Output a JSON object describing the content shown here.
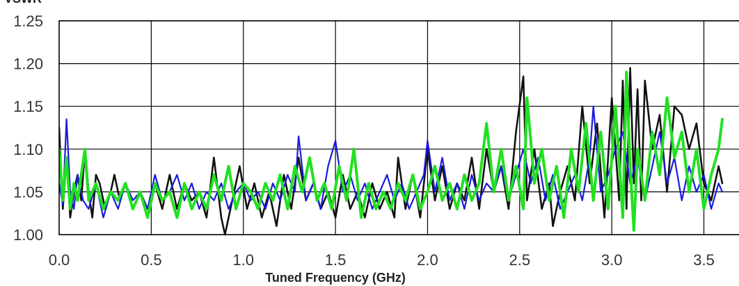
{
  "chart_data": {
    "type": "line",
    "title": "",
    "ylabel": "VSWR",
    "xlabel": "Tuned Frequency (GHz)",
    "xlim": [
      0.0,
      3.6
    ],
    "ylim": [
      1.0,
      1.25
    ],
    "x_ticks": [
      0.0,
      0.5,
      1.0,
      1.5,
      2.0,
      2.5,
      3.0,
      3.5
    ],
    "x_tick_labels": [
      "0.0",
      "0.5",
      "1.0",
      "1.5",
      "2.0",
      "2.5",
      "3.0",
      "3.5"
    ],
    "y_ticks": [
      1.0,
      1.05,
      1.1,
      1.15,
      1.2,
      1.25
    ],
    "y_tick_labels": [
      "1.00",
      "1.05",
      "1.10",
      "1.15",
      "1.20",
      "1.25"
    ],
    "grid": true,
    "legend": "none",
    "colors": {
      "black": "#111111",
      "blue": "#1a1adc",
      "green": "#22e022"
    },
    "series": [
      {
        "color": "#111111",
        "x": [
          0.0,
          0.02,
          0.04,
          0.06,
          0.08,
          0.1,
          0.12,
          0.14,
          0.16,
          0.18,
          0.2,
          0.22,
          0.25,
          0.28,
          0.3,
          0.33,
          0.36,
          0.4,
          0.44,
          0.48,
          0.52,
          0.56,
          0.6,
          0.64,
          0.68,
          0.72,
          0.76,
          0.8,
          0.84,
          0.88,
          0.9,
          0.94,
          0.98,
          1.02,
          1.06,
          1.1,
          1.14,
          1.18,
          1.22,
          1.26,
          1.3,
          1.34,
          1.38,
          1.42,
          1.46,
          1.5,
          1.54,
          1.58,
          1.62,
          1.66,
          1.7,
          1.74,
          1.78,
          1.82,
          1.84,
          1.88,
          1.92,
          1.96,
          2.0,
          2.04,
          2.08,
          2.12,
          2.16,
          2.2,
          2.24,
          2.28,
          2.32,
          2.36,
          2.4,
          2.44,
          2.48,
          2.52,
          2.54,
          2.58,
          2.62,
          2.66,
          2.68,
          2.72,
          2.76,
          2.8,
          2.84,
          2.88,
          2.92,
          2.96,
          3.0,
          3.04,
          3.06,
          3.08,
          3.1,
          3.12,
          3.14,
          3.16,
          3.18,
          3.22,
          3.26,
          3.3,
          3.34,
          3.38,
          3.42,
          3.46,
          3.5,
          3.54,
          3.58,
          3.6
        ],
        "y": [
          1.125,
          1.03,
          1.09,
          1.02,
          1.05,
          1.07,
          1.04,
          1.1,
          1.05,
          1.02,
          1.07,
          1.06,
          1.03,
          1.05,
          1.07,
          1.04,
          1.06,
          1.03,
          1.05,
          1.03,
          1.06,
          1.03,
          1.07,
          1.03,
          1.06,
          1.04,
          1.05,
          1.02,
          1.09,
          1.02,
          1.0,
          1.04,
          1.08,
          1.03,
          1.06,
          1.02,
          1.05,
          1.01,
          1.07,
          1.03,
          1.09,
          1.04,
          1.06,
          1.03,
          1.05,
          1.02,
          1.07,
          1.03,
          1.05,
          1.02,
          1.06,
          1.03,
          1.05,
          1.02,
          1.09,
          1.03,
          1.07,
          1.02,
          1.1,
          1.04,
          1.08,
          1.03,
          1.06,
          1.04,
          1.09,
          1.03,
          1.1,
          1.05,
          1.08,
          1.03,
          1.12,
          1.185,
          1.04,
          1.1,
          1.03,
          1.06,
          1.01,
          1.05,
          1.08,
          1.04,
          1.15,
          1.06,
          1.13,
          1.02,
          1.16,
          1.04,
          1.18,
          1.03,
          1.195,
          1.06,
          1.17,
          1.04,
          1.18,
          1.1,
          1.14,
          1.05,
          1.15,
          1.14,
          1.1,
          1.13,
          1.06,
          1.04,
          1.08,
          1.06
        ]
      },
      {
        "color": "#1a1adc",
        "x": [
          0.0,
          0.02,
          0.04,
          0.06,
          0.08,
          0.1,
          0.13,
          0.16,
          0.2,
          0.24,
          0.28,
          0.32,
          0.36,
          0.4,
          0.44,
          0.48,
          0.52,
          0.56,
          0.6,
          0.64,
          0.68,
          0.72,
          0.76,
          0.8,
          0.84,
          0.88,
          0.92,
          0.96,
          1.0,
          1.04,
          1.08,
          1.12,
          1.16,
          1.2,
          1.24,
          1.28,
          1.3,
          1.34,
          1.38,
          1.42,
          1.46,
          1.5,
          1.54,
          1.58,
          1.62,
          1.66,
          1.7,
          1.74,
          1.78,
          1.82,
          1.86,
          1.9,
          1.94,
          1.98,
          2.0,
          2.04,
          2.08,
          2.12,
          2.16,
          2.2,
          2.24,
          2.28,
          2.32,
          2.36,
          2.4,
          2.44,
          2.48,
          2.52,
          2.56,
          2.6,
          2.64,
          2.68,
          2.72,
          2.76,
          2.8,
          2.84,
          2.88,
          2.9,
          2.94,
          2.98,
          3.02,
          3.06,
          3.1,
          3.14,
          3.18,
          3.22,
          3.26,
          3.3,
          3.34,
          3.38,
          3.42,
          3.46,
          3.5,
          3.54,
          3.58,
          3.6
        ],
        "y": [
          1.06,
          1.035,
          1.135,
          1.05,
          1.03,
          1.07,
          1.04,
          1.03,
          1.06,
          1.02,
          1.05,
          1.03,
          1.06,
          1.04,
          1.05,
          1.03,
          1.07,
          1.04,
          1.05,
          1.07,
          1.04,
          1.06,
          1.03,
          1.05,
          1.04,
          1.06,
          1.03,
          1.05,
          1.06,
          1.04,
          1.05,
          1.03,
          1.06,
          1.04,
          1.07,
          1.05,
          1.115,
          1.04,
          1.06,
          1.03,
          1.08,
          1.11,
          1.05,
          1.07,
          1.04,
          1.06,
          1.03,
          1.05,
          1.07,
          1.04,
          1.06,
          1.03,
          1.05,
          1.07,
          1.11,
          1.05,
          1.09,
          1.04,
          1.06,
          1.03,
          1.07,
          1.04,
          1.06,
          1.05,
          1.08,
          1.04,
          1.07,
          1.1,
          1.06,
          1.09,
          1.04,
          1.07,
          1.03,
          1.05,
          1.07,
          1.04,
          1.09,
          1.15,
          1.05,
          1.07,
          1.1,
          1.12,
          1.06,
          1.09,
          1.04,
          1.08,
          1.12,
          1.06,
          1.09,
          1.04,
          1.08,
          1.05,
          1.07,
          1.03,
          1.06,
          1.05
        ]
      },
      {
        "color": "#22e022",
        "x": [
          0.0,
          0.02,
          0.04,
          0.06,
          0.08,
          0.1,
          0.12,
          0.14,
          0.16,
          0.2,
          0.24,
          0.28,
          0.32,
          0.36,
          0.4,
          0.44,
          0.48,
          0.52,
          0.56,
          0.6,
          0.64,
          0.68,
          0.72,
          0.76,
          0.8,
          0.84,
          0.88,
          0.92,
          0.96,
          1.0,
          1.04,
          1.08,
          1.12,
          1.16,
          1.2,
          1.24,
          1.28,
          1.32,
          1.36,
          1.4,
          1.44,
          1.48,
          1.52,
          1.56,
          1.6,
          1.64,
          1.68,
          1.72,
          1.76,
          1.8,
          1.84,
          1.88,
          1.92,
          1.96,
          2.0,
          2.04,
          2.08,
          2.12,
          2.16,
          2.2,
          2.24,
          2.28,
          2.32,
          2.36,
          2.4,
          2.44,
          2.48,
          2.52,
          2.54,
          2.58,
          2.62,
          2.66,
          2.7,
          2.74,
          2.78,
          2.82,
          2.86,
          2.9,
          2.94,
          2.98,
          3.02,
          3.06,
          3.08,
          3.1,
          3.12,
          3.14,
          3.18,
          3.22,
          3.26,
          3.3,
          3.34,
          3.38,
          3.42,
          3.46,
          3.5,
          3.54,
          3.58,
          3.6
        ],
        "y": [
          1.1,
          1.04,
          1.09,
          1.03,
          1.06,
          1.04,
          1.07,
          1.1,
          1.04,
          1.06,
          1.03,
          1.05,
          1.04,
          1.06,
          1.03,
          1.05,
          1.02,
          1.06,
          1.04,
          1.05,
          1.02,
          1.06,
          1.03,
          1.05,
          1.03,
          1.07,
          1.04,
          1.08,
          1.03,
          1.06,
          1.05,
          1.03,
          1.06,
          1.04,
          1.07,
          1.03,
          1.08,
          1.05,
          1.09,
          1.04,
          1.06,
          1.03,
          1.08,
          1.04,
          1.1,
          1.02,
          1.06,
          1.03,
          1.05,
          1.03,
          1.06,
          1.04,
          1.07,
          1.03,
          1.05,
          1.08,
          1.04,
          1.06,
          1.03,
          1.07,
          1.04,
          1.06,
          1.13,
          1.05,
          1.1,
          1.04,
          1.08,
          1.03,
          1.16,
          1.06,
          1.1,
          1.04,
          1.08,
          1.02,
          1.1,
          1.05,
          1.13,
          1.04,
          1.12,
          1.03,
          1.15,
          1.02,
          1.19,
          1.08,
          1.005,
          1.1,
          1.04,
          1.12,
          1.07,
          1.16,
          1.09,
          1.12,
          1.05,
          1.1,
          1.03,
          1.07,
          1.1,
          1.135
        ]
      }
    ]
  }
}
